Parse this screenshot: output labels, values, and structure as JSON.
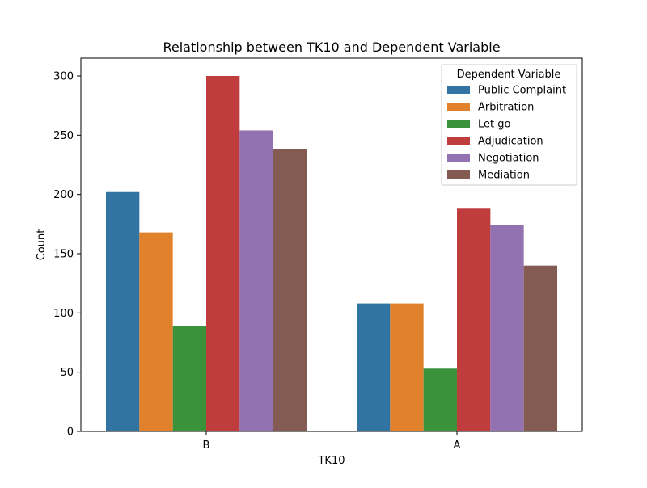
{
  "chart_data": {
    "type": "bar",
    "title": "Relationship between TK10 and Dependent Variable",
    "xlabel": "TK10",
    "ylabel": "Count",
    "categories": [
      "B",
      "A"
    ],
    "ylim": [
      0,
      315
    ],
    "yticks": [
      0,
      50,
      100,
      150,
      200,
      250,
      300
    ],
    "grid": false,
    "legend": {
      "title": "Dependent Variable",
      "placement": "top-right"
    },
    "series": [
      {
        "name": "Public Complaint",
        "color": "#3274a1",
        "values": [
          202,
          108
        ]
      },
      {
        "name": "Arbitration",
        "color": "#e1812c",
        "values": [
          168,
          108
        ]
      },
      {
        "name": "Let go",
        "color": "#3a923a",
        "values": [
          89,
          53
        ]
      },
      {
        "name": "Adjudication",
        "color": "#c03d3e",
        "values": [
          300,
          188
        ]
      },
      {
        "name": "Negotiation",
        "color": "#9372b2",
        "values": [
          254,
          174
        ]
      },
      {
        "name": "Mediation",
        "color": "#845b53",
        "values": [
          238,
          140
        ]
      }
    ]
  }
}
